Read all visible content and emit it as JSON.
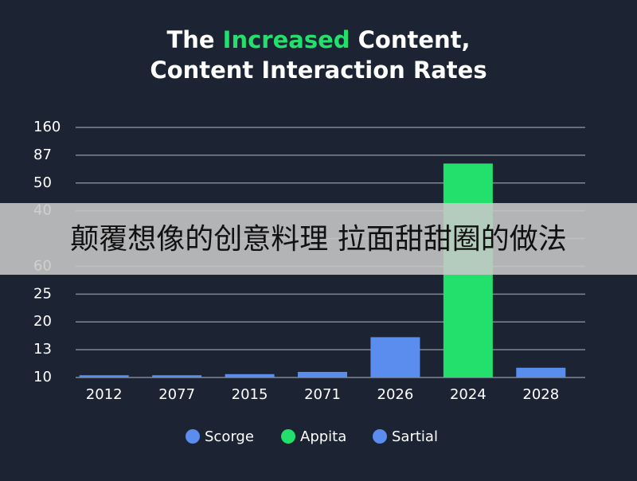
{
  "chart_data": {
    "type": "bar",
    "title_line1": [
      "The ",
      "Increased",
      " Content,"
    ],
    "title_line2": "Content Interaction Rates",
    "title_highlight_color": "#22e06b",
    "categories": [
      "2012",
      "2077",
      "2015",
      "2071",
      "2026",
      "2024",
      "2028"
    ],
    "values": [
      0.08,
      0.08,
      0.12,
      0.2,
      1.45,
      7.7,
      0.35
    ],
    "colors": [
      "#5b8def",
      "#5b8def",
      "#5b8def",
      "#5b8def",
      "#5b8def",
      "#22e06b",
      "#5b8def"
    ],
    "ylim": [
      0,
      9
    ],
    "yticks": [
      {
        "value": 0,
        "label": "10"
      },
      {
        "value": 1,
        "label": "13"
      },
      {
        "value": 2,
        "label": "20"
      },
      {
        "value": 3,
        "label": "25"
      },
      {
        "value": 4,
        "label": "60"
      },
      {
        "value": 5,
        "label": null
      },
      {
        "value": 6,
        "label": "40"
      },
      {
        "value": 7,
        "label": "50"
      },
      {
        "value": 8,
        "label": "87"
      },
      {
        "value": 9,
        "label": "160"
      }
    ],
    "grid": true,
    "legend": [
      {
        "name": "Scorge",
        "color": "#5b8def"
      },
      {
        "name": "Appita",
        "color": "#22e06b"
      },
      {
        "name": "Sartial",
        "color": "#5b8def"
      }
    ]
  },
  "banner": {
    "text": "颠覆想像的创意料理 拉面甜甜圈的做法"
  }
}
